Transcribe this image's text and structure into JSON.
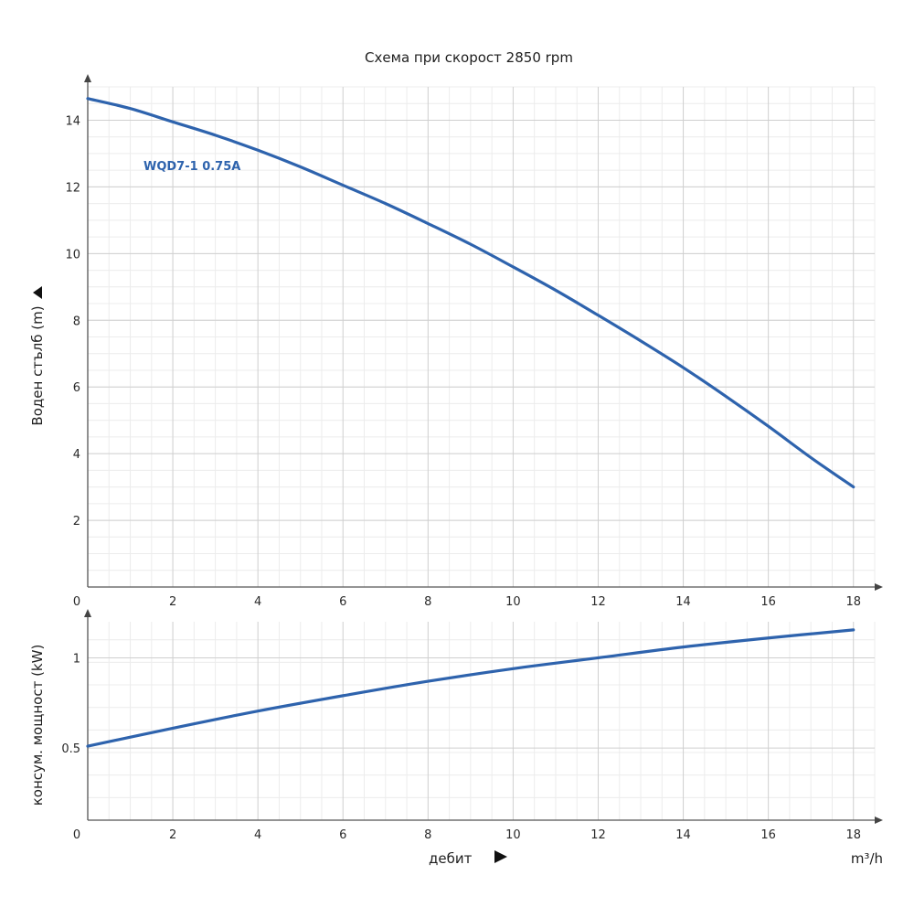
{
  "colors": {
    "curve": "#2e63ad",
    "series_label": "#2e63ad"
  },
  "chart_data": [
    {
      "type": "line",
      "title": "Схема при скорост 2850 rpm",
      "xlabel": "",
      "ylabel": "Воден стълб (m)",
      "xlim": [
        0,
        18.5
      ],
      "ylim": [
        0,
        15
      ],
      "x_ticks": [
        0,
        2,
        4,
        6,
        8,
        10,
        12,
        14,
        16,
        18
      ],
      "y_ticks": [
        2,
        4,
        6,
        8,
        10,
        12,
        14
      ],
      "grid": true,
      "series": [
        {
          "name": "WQD7-1 0.75A",
          "x": [
            0,
            1,
            2,
            3,
            4,
            5,
            6,
            7,
            8,
            9,
            10,
            11,
            12,
            13,
            14,
            15,
            16,
            17,
            18
          ],
          "y": [
            14.65,
            14.35,
            13.95,
            13.55,
            13.1,
            12.6,
            12.05,
            11.5,
            10.9,
            10.28,
            9.6,
            8.9,
            8.15,
            7.38,
            6.58,
            5.72,
            4.82,
            3.88,
            3.0
          ]
        }
      ]
    },
    {
      "type": "line",
      "title": "",
      "xlabel": "дебит",
      "x_unit": "m³/h",
      "ylabel": "консум. мощност (kW)",
      "xlim": [
        0,
        18.5
      ],
      "ylim": [
        0.1,
        1.2
      ],
      "x_ticks": [
        0,
        2,
        4,
        6,
        8,
        10,
        12,
        14,
        16,
        18
      ],
      "y_ticks": [
        0.5,
        1
      ],
      "y_tick_labels": [
        "0.5",
        "1"
      ],
      "grid": true,
      "series": [
        {
          "x": [
            0,
            2,
            4,
            6,
            8,
            10,
            12,
            14,
            16,
            18
          ],
          "y": [
            0.51,
            0.61,
            0.705,
            0.79,
            0.87,
            0.94,
            1.0,
            1.06,
            1.11,
            1.155
          ]
        }
      ]
    }
  ]
}
